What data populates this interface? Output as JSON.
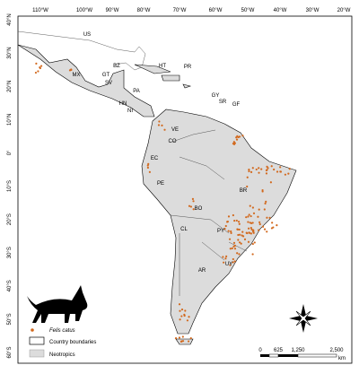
{
  "lon_ticks": [
    "110°W",
    "100°W",
    "90°W",
    "80°W",
    "70°W",
    "60°W",
    "50°W",
    "40°W",
    "30°W",
    "20°W"
  ],
  "lat_ticks": [
    "40°N",
    "30°N",
    "20°N",
    "10°N",
    "0°",
    "10°S",
    "20°S",
    "30°S",
    "40°S",
    "50°S",
    "60°S"
  ],
  "countries": [
    "US",
    "MX",
    "BZ",
    "GT",
    "SV",
    "HT",
    "PR",
    "PA",
    "HN",
    "NI",
    "GY",
    "SR",
    "GF",
    "VE",
    "CO",
    "EC",
    "PE",
    "BR",
    "BO",
    "PY",
    "CL",
    "UY",
    "AR"
  ],
  "legend": {
    "species": "Felis catus",
    "boundaries": "Country boundaries",
    "region": "Neotropics"
  },
  "scale": {
    "labels": [
      "0",
      "625",
      "1,250",
      "2,500"
    ],
    "unit": "km"
  }
}
